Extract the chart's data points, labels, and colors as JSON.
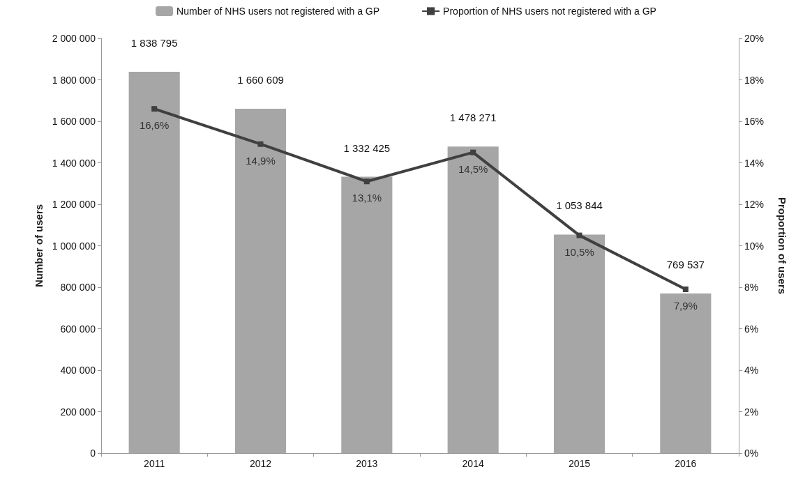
{
  "chart_data": {
    "type": "bar",
    "categories": [
      "2011",
      "2012",
      "2013",
      "2014",
      "2015",
      "2016"
    ],
    "ylabel": "Number of users",
    "y2label": "Proportion of users",
    "ylim": [
      0,
      2000000
    ],
    "yticks": [
      0,
      {
        "value": 200000,
        "label": "200 000"
      },
      {
        "value": 400000,
        "label": "400 000"
      },
      {
        "value": 600000,
        "label": "600 000"
      },
      {
        "value": 800000,
        "label": "800 000"
      },
      {
        "value": 1000000,
        "label": "1 000 000"
      },
      {
        "value": 1200000,
        "label": "1 200 000"
      },
      {
        "value": 1400000,
        "label": "1 400 000"
      },
      {
        "value": 1600000,
        "label": "1 600 000"
      },
      {
        "value": 1800000,
        "label": "1 800 000"
      },
      {
        "value": 2000000,
        "label": "2 000 000"
      }
    ],
    "y2lim": [
      0,
      20
    ],
    "y2ticks": [
      {
        "value": 0,
        "label": "0%"
      },
      {
        "value": 2,
        "label": "2%"
      },
      {
        "value": 4,
        "label": "4%"
      },
      {
        "value": 6,
        "label": "6%"
      },
      {
        "value": 8,
        "label": "8%"
      },
      {
        "value": 10,
        "label": "10%"
      },
      {
        "value": 12,
        "label": "12%"
      },
      {
        "value": 14,
        "label": "14%"
      },
      {
        "value": 16,
        "label": "16%"
      },
      {
        "value": 18,
        "label": "18%"
      },
      {
        "value": 20,
        "label": "20%"
      }
    ],
    "series": [
      {
        "name": "Number of NHS users not registered with a GP",
        "color": "#a6a6a6",
        "values": [
          1838795,
          1660609,
          1332425,
          1478271,
          1053844,
          769537
        ],
        "value_labels": [
          "1 838 795",
          "1 660 609",
          "1 332 425",
          "1 478 271",
          "1 053 844",
          "769 537"
        ]
      },
      {
        "name": "Proportion of NHS users not registered with a GP",
        "type": "line",
        "axis": "y2",
        "color": "#404040",
        "marker": "square",
        "values": [
          16.6,
          14.9,
          13.1,
          14.5,
          10.5,
          7.9
        ],
        "value_labels": [
          "16,6%",
          "14,9%",
          "13,1%",
          "14,5%",
          "10,5%",
          "7,9%"
        ]
      }
    ],
    "legend": "top",
    "grid": false
  }
}
